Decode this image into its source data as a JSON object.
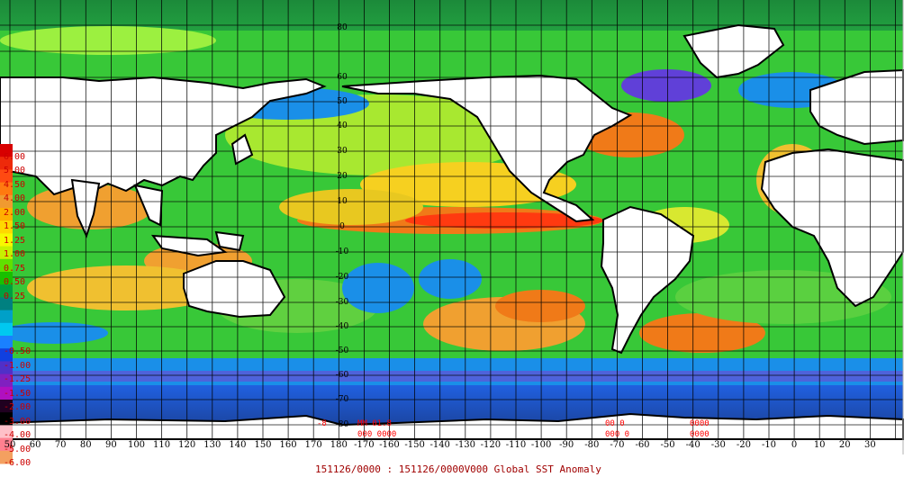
{
  "caption": "151126/0000 : 151126/0000V000 Global SST Anomaly",
  "legend": {
    "colors": [
      "#d80000",
      "#ee2a0a",
      "#ff4a12",
      "#ff7a10",
      "#f09a30",
      "#ffb000",
      "#ffd800",
      "#f8f800",
      "#c8f000",
      "#60e000",
      "#18c000",
      "#00a040",
      "#008080",
      "#00a0c8",
      "#00c8f0",
      "#1a80ff",
      "#1040e0",
      "#5030c8",
      "#8020c0",
      "#b010c0",
      "#200020",
      "#000000",
      "#ffc0c8",
      "#ff8090",
      "#f4a060"
    ],
    "labels": [
      "6.00",
      "5.00",
      "4.50",
      "4.00",
      "2.00",
      "1.50",
      "1.25",
      "1.00",
      "0.75",
      "0.50",
      "0.25",
      "",
      "",
      "",
      "-0.50",
      "-1.00",
      "-1.25",
      "-1.50",
      "-2.00",
      "-3.00",
      "-4.00",
      "-5.00",
      "-6.00"
    ]
  },
  "lon_labels": [
    "50",
    "60",
    "70",
    "80",
    "90",
    "100",
    "110",
    "120",
    "130",
    "140",
    "150",
    "160",
    "170",
    "180",
    "-170",
    "-160",
    "-150",
    "-140",
    "-130",
    "-120",
    "-110",
    "-100",
    "-90",
    "-80",
    "-70",
    "-60",
    "-50",
    "-40",
    "-30",
    "-20",
    "-10",
    "0",
    "10",
    "20",
    "30"
  ],
  "lat_labels": [
    "80",
    "60",
    "50",
    "40",
    "30",
    "20",
    "10",
    "0",
    "-10",
    "-20",
    "-30",
    "-40",
    "-50",
    "-60",
    "-70",
    "-80"
  ],
  "red_overlays": [
    "-8",
    "MM 01.8",
    "000 0000",
    "00 0",
    "000 0",
    "0000",
    "0000"
  ]
}
